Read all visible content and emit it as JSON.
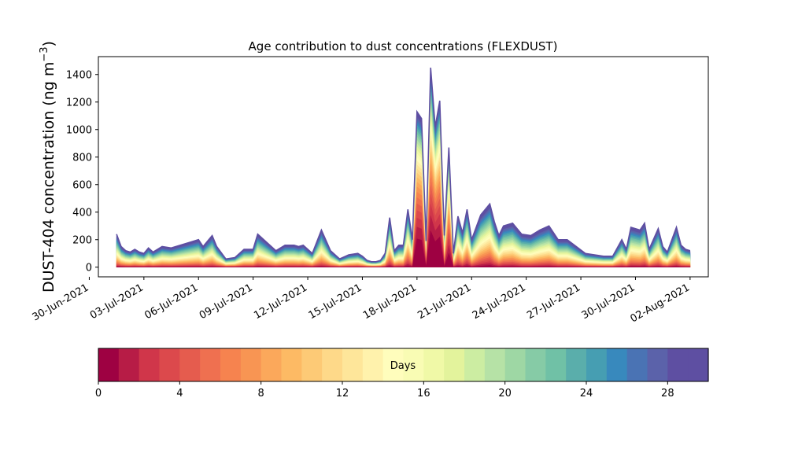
{
  "chart_data": {
    "type": "area",
    "stacked": true,
    "title": "Age contribution to dust concentrations (FLEXDUST)",
    "ylabel_main": "DUST-404 concentration (ng m",
    "ylabel_exp": "−3",
    "ylabel_close": ")",
    "xlabel": "",
    "yticks": [
      0,
      200,
      400,
      600,
      800,
      1000,
      1200,
      1400
    ],
    "ytick_labels": [
      "0",
      "200",
      "400",
      "600",
      "800",
      "1000",
      "1200",
      "1400"
    ],
    "ylim": [
      -70,
      1530
    ],
    "xlim": [
      "2021-06-30T12:00",
      "2021-08-03T00:00"
    ],
    "xticks": [
      "2021-06-30",
      "2021-07-03",
      "2021-07-06",
      "2021-07-09",
      "2021-07-12",
      "2021-07-15",
      "2021-07-18",
      "2021-07-21",
      "2021-07-24",
      "2021-07-27",
      "2021-07-30",
      "2021-08-02"
    ],
    "xtick_labels": [
      "30-Jun-2021",
      "03-Jul-2021",
      "06-Jul-2021",
      "09-Jul-2021",
      "12-Jul-2021",
      "15-Jul-2021",
      "18-Jul-2021",
      "21-Jul-2021",
      "24-Jul-2021",
      "27-Jul-2021",
      "30-Jul-2021",
      "02-Aug-2021"
    ],
    "total_concentration": {
      "dates": [
        "2021-07-01T12:00",
        "2021-07-01T18:00",
        "2021-07-02T00:00",
        "2021-07-02T06:00",
        "2021-07-02T12:00",
        "2021-07-02T18:00",
        "2021-07-03T00:00",
        "2021-07-03T06:00",
        "2021-07-03T12:00",
        "2021-07-04T00:00",
        "2021-07-04T12:00",
        "2021-07-05T00:00",
        "2021-07-05T12:00",
        "2021-07-06T00:00",
        "2021-07-06T06:00",
        "2021-07-06T18:00",
        "2021-07-07T00:00",
        "2021-07-07T12:00",
        "2021-07-08T00:00",
        "2021-07-08T12:00",
        "2021-07-09T00:00",
        "2021-07-09T06:00",
        "2021-07-09T18:00",
        "2021-07-10T06:00",
        "2021-07-10T18:00",
        "2021-07-11T06:00",
        "2021-07-11T12:00",
        "2021-07-11T18:00",
        "2021-07-12T06:00",
        "2021-07-12T18:00",
        "2021-07-13T06:00",
        "2021-07-13T18:00",
        "2021-07-14T06:00",
        "2021-07-14T18:00",
        "2021-07-15T00:00",
        "2021-07-15T06:00",
        "2021-07-15T12:00",
        "2021-07-15T18:00",
        "2021-07-16T00:00",
        "2021-07-16T06:00",
        "2021-07-16T12:00",
        "2021-07-16T18:00",
        "2021-07-17T00:00",
        "2021-07-17T06:00",
        "2021-07-17T12:00",
        "2021-07-17T18:00",
        "2021-07-18T00:00",
        "2021-07-18T06:00",
        "2021-07-18T12:00",
        "2021-07-18T18:00",
        "2021-07-19T00:00",
        "2021-07-19T06:00",
        "2021-07-19T12:00",
        "2021-07-19T18:00",
        "2021-07-20T00:00",
        "2021-07-20T06:00",
        "2021-07-20T12:00",
        "2021-07-20T18:00",
        "2021-07-21T00:00",
        "2021-07-21T12:00",
        "2021-07-22T00:00",
        "2021-07-22T06:00",
        "2021-07-22T12:00",
        "2021-07-22T18:00",
        "2021-07-23T06:00",
        "2021-07-23T18:00",
        "2021-07-24T06:00",
        "2021-07-24T18:00",
        "2021-07-25T06:00",
        "2021-07-25T18:00",
        "2021-07-26T06:00",
        "2021-07-26T18:00",
        "2021-07-27T06:00",
        "2021-07-27T18:00",
        "2021-07-28T06:00",
        "2021-07-28T18:00",
        "2021-07-29T06:00",
        "2021-07-29T12:00",
        "2021-07-29T18:00",
        "2021-07-30T06:00",
        "2021-07-30T12:00",
        "2021-07-30T18:00",
        "2021-07-31T06:00",
        "2021-07-31T12:00",
        "2021-07-31T18:00",
        "2021-08-01T06:00",
        "2021-08-01T12:00",
        "2021-08-01T18:00",
        "2021-08-02T00:00"
      ],
      "values": [
        240,
        150,
        120,
        110,
        130,
        110,
        100,
        140,
        110,
        150,
        140,
        160,
        180,
        200,
        150,
        230,
        150,
        60,
        70,
        130,
        130,
        240,
        180,
        120,
        160,
        160,
        150,
        160,
        100,
        270,
        120,
        60,
        90,
        100,
        80,
        50,
        40,
        40,
        50,
        100,
        360,
        120,
        160,
        160,
        420,
        200,
        1130,
        1080,
        190,
        1450,
        1020,
        1210,
        230,
        870,
        100,
        370,
        250,
        420,
        200,
        380,
        460,
        330,
        230,
        300,
        320,
        240,
        230,
        270,
        300,
        200,
        200,
        150,
        100,
        90,
        80,
        80,
        200,
        130,
        290,
        270,
        320,
        130,
        280,
        150,
        110,
        290,
        160,
        130,
        120
      ]
    },
    "age_bands_days": {
      "min": 0,
      "max": 30,
      "count": 30
    },
    "colorbar": {
      "label": "Days",
      "ticks": [
        0,
        4,
        8,
        12,
        16,
        20,
        24,
        28
      ],
      "tick_labels": [
        "0",
        "4",
        "8",
        "12",
        "16",
        "20",
        "24",
        "28"
      ],
      "colormap": "Spectral",
      "colors": [
        "#9e0142",
        "#b71c46",
        "#d0364a",
        "#dc494c",
        "#e55c4e",
        "#ef7050",
        "#f6834f",
        "#f89553",
        "#fba85b",
        "#fdba64",
        "#fdca76",
        "#fed989",
        "#fee69a",
        "#fff2ac",
        "#fffdbc",
        "#f9fcb4",
        "#f0f9a7",
        "#e3f39c",
        "#cceda2",
        "#b6e2a6",
        "#9ed7a4",
        "#86cba6",
        "#70c1a6",
        "#5aaeab",
        "#469eb2",
        "#3889bd",
        "#4a73b4",
        "#5b62aa",
        "#5e4fa2",
        "#5e4fa2"
      ]
    }
  }
}
